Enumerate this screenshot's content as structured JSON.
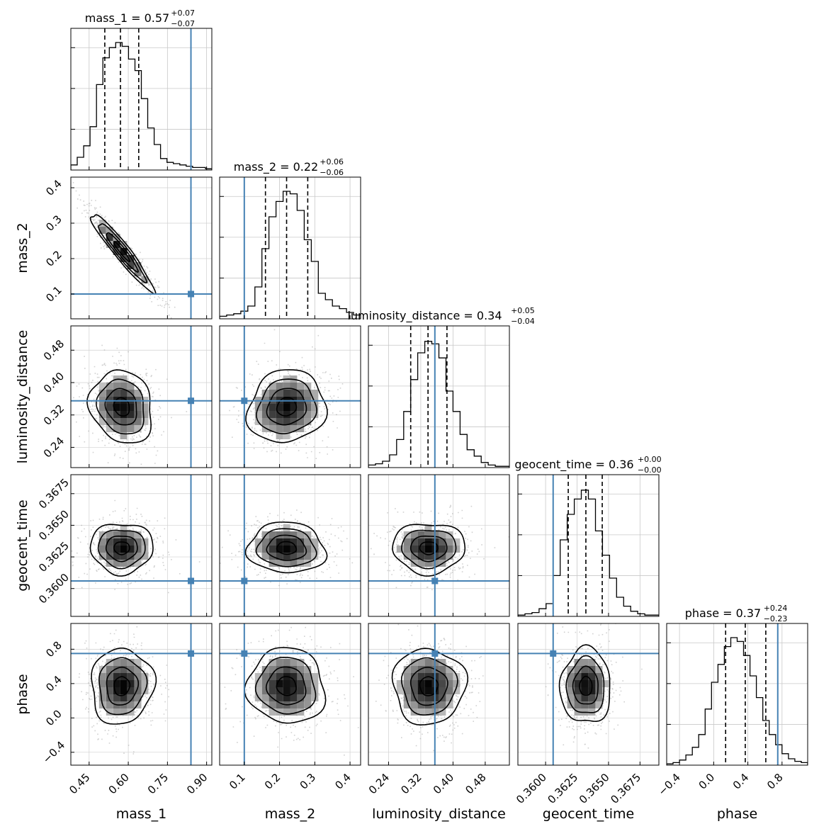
{
  "chart_data": {
    "type": "corner",
    "parameters": [
      {
        "name": "mass_1",
        "label": "mass_1",
        "lim": [
          0.38,
          0.92
        ],
        "ticks": [
          0.45,
          0.6,
          0.75,
          0.9
        ],
        "tick_labels": [
          "0.45",
          "0.60",
          "0.75",
          "0.90"
        ],
        "truth": 0.84,
        "mean": 0.575,
        "sd": 0.06,
        "quantiles": [
          0.51,
          0.57,
          0.64
        ],
        "title_value": "0.57",
        "title_plus": "+0.07",
        "title_minus": "−0.07",
        "hist_edges": [
          0.38,
          0.92
        ],
        "hist": [
          0.04,
          0.1,
          0.19,
          0.34,
          0.67,
          0.88,
          0.96,
          1.0,
          0.97,
          0.87,
          0.78,
          0.56,
          0.33,
          0.2,
          0.09,
          0.06,
          0.05,
          0.04,
          0.03,
          0.02,
          0.02,
          0.01
        ]
      },
      {
        "name": "mass_2",
        "label": "mass_2",
        "lim": [
          0.03,
          0.43
        ],
        "ticks": [
          0.1,
          0.2,
          0.3,
          0.4
        ],
        "tick_labels": [
          "0.1",
          "0.2",
          "0.3",
          "0.4"
        ],
        "truth": 0.1,
        "mean": 0.22,
        "sd": 0.055,
        "quantiles": [
          0.16,
          0.22,
          0.28
        ],
        "title_value": "0.22",
        "title_plus": "+0.06",
        "title_minus": "−0.06",
        "hist_edges": [
          0.03,
          0.43
        ],
        "hist": [
          0.02,
          0.03,
          0.04,
          0.06,
          0.1,
          0.25,
          0.55,
          0.8,
          0.92,
          1.0,
          0.98,
          0.85,
          0.62,
          0.45,
          0.2,
          0.15,
          0.1,
          0.08,
          0.05,
          0.03
        ]
      },
      {
        "name": "luminosity_distance",
        "label": "luminosity_distance",
        "lim": [
          0.19,
          0.54
        ],
        "ticks": [
          0.24,
          0.32,
          0.4,
          0.48
        ],
        "tick_labels": [
          "0.24",
          "0.32",
          "0.40",
          "0.48"
        ],
        "truth": 0.355,
        "mean": 0.34,
        "sd": 0.045,
        "quantiles": [
          0.295,
          0.338,
          0.385
        ],
        "title_value": "0.34",
        "title_plus": "+0.05",
        "title_minus": "−0.04",
        "hist_edges": [
          0.19,
          0.54
        ],
        "hist": [
          0.02,
          0.03,
          0.05,
          0.1,
          0.22,
          0.44,
          0.69,
          0.9,
          0.99,
          0.97,
          0.86,
          0.6,
          0.44,
          0.26,
          0.14,
          0.09,
          0.04,
          0.02,
          0.01,
          0.01
        ]
      },
      {
        "name": "geocent_time",
        "label": "geocent_time",
        "lim": [
          0.3578,
          0.369
        ],
        "ticks": [
          0.36,
          0.3625,
          0.365,
          0.3675
        ],
        "tick_labels": [
          "0.3600",
          "0.3625",
          "0.3650",
          "0.3675"
        ],
        "truth": 0.3606,
        "mean": 0.3632,
        "sd": 0.001,
        "quantiles": [
          0.3618,
          0.3632,
          0.3645
        ],
        "title_value": "0.36",
        "title_plus": "+0.00",
        "title_minus": "−0.00",
        "hist_edges": [
          0.3578,
          0.369
        ],
        "hist": [
          0.01,
          0.02,
          0.03,
          0.06,
          0.1,
          0.32,
          0.6,
          0.8,
          0.92,
          0.99,
          0.92,
          0.67,
          0.48,
          0.3,
          0.15,
          0.08,
          0.04,
          0.02,
          0.01,
          0.01
        ]
      },
      {
        "name": "phase",
        "label": "phase",
        "lim": [
          -0.55,
          1.1
        ],
        "ticks": [
          -0.4,
          0.0,
          0.4,
          0.8
        ],
        "tick_labels": [
          "−0.4",
          "0.0",
          "0.4",
          "0.8"
        ],
        "truth": 0.75,
        "mean": 0.37,
        "sd": 0.22,
        "quantiles": [
          0.14,
          0.37,
          0.61
        ],
        "title_value": "0.37",
        "title_plus": "+0.24",
        "title_minus": "−0.23",
        "hist_edges": [
          -0.55,
          1.1
        ],
        "hist": [
          0.01,
          0.02,
          0.04,
          0.08,
          0.14,
          0.24,
          0.44,
          0.65,
          0.79,
          0.93,
          1.0,
          0.97,
          0.86,
          0.7,
          0.53,
          0.35,
          0.24,
          0.16,
          0.09,
          0.05,
          0.03,
          0.02
        ]
      }
    ],
    "correlations": [
      [
        1,
        -0.95,
        -0.15,
        0.0,
        0.05
      ],
      [
        -0.95,
        1,
        0.1,
        -0.05,
        -0.05
      ],
      [
        -0.15,
        0.1,
        1,
        0.0,
        0.0
      ],
      [
        0.0,
        -0.05,
        0.0,
        1,
        0.0
      ],
      [
        0.05,
        -0.05,
        0.0,
        0.0,
        1
      ]
    ],
    "title_equals": " = ",
    "truth_color": "#4682b4",
    "contour_levels": [
      0.5,
      1.0,
      1.5,
      2.0
    ]
  }
}
